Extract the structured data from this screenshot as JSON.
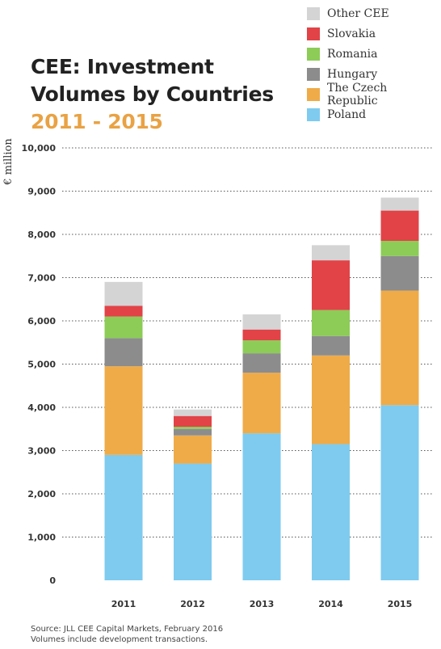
{
  "title": {
    "main": "CEE: Investment Volumes by Countries",
    "accent": "2011 - 2015"
  },
  "colors": {
    "title_accent": "#e9a244",
    "grid": "#555555",
    "series": [
      "#7ecbef",
      "#efab48",
      "#8c8c8d",
      "#8ccc57",
      "#e14347",
      "#d4d4d5"
    ]
  },
  "legend_order": [
    5,
    4,
    3,
    2,
    1,
    0
  ],
  "chart_data": {
    "type": "bar",
    "stacked": true,
    "categories": [
      "2011",
      "2012",
      "2013",
      "2014",
      "2015"
    ],
    "series": [
      {
        "name": "Poland",
        "values": [
          2900,
          2700,
          3400,
          3150,
          4050
        ]
      },
      {
        "name": "The Czech Republic",
        "values": [
          2050,
          650,
          1400,
          2050,
          2650
        ]
      },
      {
        "name": "Hungary",
        "values": [
          650,
          150,
          450,
          450,
          800
        ]
      },
      {
        "name": "Romania",
        "values": [
          500,
          50,
          300,
          600,
          350
        ]
      },
      {
        "name": "Slovakia",
        "values": [
          250,
          250,
          250,
          1150,
          700
        ]
      },
      {
        "name": "Other CEE",
        "values": [
          550,
          150,
          350,
          350,
          300
        ]
      }
    ],
    "ylabel": "€ million",
    "ylim": [
      0,
      10000
    ],
    "yticks": [
      0,
      1000,
      2000,
      3000,
      4000,
      5000,
      6000,
      7000,
      8000,
      9000,
      10000
    ],
    "ytick_labels": [
      "0",
      "1,000",
      "2,000",
      "3,000",
      "4,000",
      "5,000",
      "6,000",
      "7,000",
      "8,000",
      "9,000",
      "10,000"
    ],
    "grid": true,
    "legend_position": "top-right"
  },
  "source": {
    "line1": "Source: JLL CEE Capital Markets, February 2016",
    "line2": "Volumes include development transactions."
  }
}
